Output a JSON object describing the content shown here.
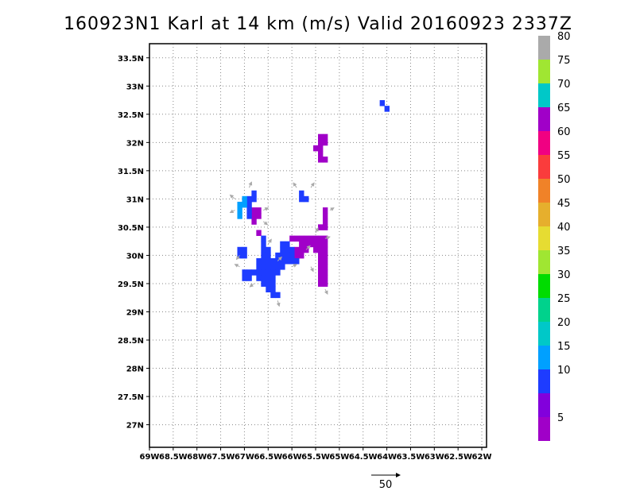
{
  "chart_data": {
    "type": "heatmap",
    "title": "160923N1 Karl at 14 km (m/s) Valid 20160923 2337Z",
    "xlim": [
      -69.0,
      -61.9
    ],
    "ylim": [
      26.6,
      33.75
    ],
    "x_ticks": [
      {
        "value": -69.0,
        "label": "69W"
      },
      {
        "value": -68.5,
        "label": "68.5W"
      },
      {
        "value": -68.0,
        "label": "68W"
      },
      {
        "value": -67.5,
        "label": "67.5W"
      },
      {
        "value": -67.0,
        "label": "67W"
      },
      {
        "value": -66.5,
        "label": "66.5W"
      },
      {
        "value": -66.0,
        "label": "66W"
      },
      {
        "value": -65.5,
        "label": "65.5W"
      },
      {
        "value": -65.0,
        "label": "65W"
      },
      {
        "value": -64.5,
        "label": "64.5W"
      },
      {
        "value": -64.0,
        "label": "64W"
      },
      {
        "value": -63.5,
        "label": "63.5W"
      },
      {
        "value": -63.0,
        "label": "63W"
      },
      {
        "value": -62.5,
        "label": "62.5W"
      },
      {
        "value": -62.0,
        "label": "62W"
      }
    ],
    "y_ticks": [
      {
        "value": 27.0,
        "label": "27N"
      },
      {
        "value": 27.5,
        "label": "27.5N"
      },
      {
        "value": 28.0,
        "label": "28N"
      },
      {
        "value": 28.5,
        "label": "28.5N"
      },
      {
        "value": 29.0,
        "label": "29N"
      },
      {
        "value": 29.5,
        "label": "29.5N"
      },
      {
        "value": 30.0,
        "label": "30N"
      },
      {
        "value": 30.5,
        "label": "30.5N"
      },
      {
        "value": 31.0,
        "label": "31N"
      },
      {
        "value": 31.5,
        "label": "31.5N"
      },
      {
        "value": 32.0,
        "label": "32N"
      },
      {
        "value": 32.5,
        "label": "32.5N"
      },
      {
        "value": 33.0,
        "label": "33N"
      },
      {
        "value": 33.5,
        "label": "33.5N"
      }
    ],
    "grid": true,
    "cell_size_deg": 0.1,
    "colorbar": {
      "placement": "right",
      "bins": [
        {
          "color": "#a000c8",
          "label": "5"
        },
        {
          "color": "#8200dc",
          "label": ""
        },
        {
          "color": "#1e3cff",
          "label": "10"
        },
        {
          "color": "#00a0ff",
          "label": "15"
        },
        {
          "color": "#00c8c8",
          "label": "20"
        },
        {
          "color": "#00d28c",
          "label": "25"
        },
        {
          "color": "#00dc00",
          "label": "30"
        },
        {
          "color": "#a0e632",
          "label": "35"
        },
        {
          "color": "#e6dc32",
          "label": "40"
        },
        {
          "color": "#e6af2d",
          "label": "45"
        },
        {
          "color": "#f08228",
          "label": "50"
        },
        {
          "color": "#fa3c3c",
          "label": "55"
        },
        {
          "color": "#f00082",
          "label": "60"
        },
        {
          "color": "#a000c8",
          "label": "65"
        },
        {
          "color": "#00c8c8",
          "label": "70"
        },
        {
          "color": "#a0e632",
          "label": "75"
        },
        {
          "color": "#aaaaaa",
          "label": "80"
        }
      ]
    },
    "regions": [
      {
        "name": "purple",
        "value": 5,
        "color": "#a000c8",
        "cells": [
          [
            -65.4,
            32.1
          ],
          [
            -65.3,
            32.1
          ],
          [
            -65.4,
            32.0
          ],
          [
            -65.3,
            32.0
          ],
          [
            -65.5,
            31.9
          ],
          [
            -65.4,
            31.9
          ],
          [
            -65.4,
            31.8
          ],
          [
            -65.4,
            31.7
          ],
          [
            -65.3,
            31.7
          ],
          [
            -65.3,
            30.8
          ],
          [
            -65.3,
            30.7
          ],
          [
            -65.3,
            30.6
          ],
          [
            -65.4,
            30.5
          ],
          [
            -65.3,
            30.5
          ],
          [
            -66.0,
            30.3
          ],
          [
            -65.9,
            30.3
          ],
          [
            -65.8,
            30.3
          ],
          [
            -65.7,
            30.3
          ],
          [
            -65.6,
            30.3
          ],
          [
            -65.5,
            30.3
          ],
          [
            -65.4,
            30.3
          ],
          [
            -65.3,
            30.3
          ],
          [
            -65.8,
            30.2
          ],
          [
            -65.7,
            30.2
          ],
          [
            -65.6,
            30.2
          ],
          [
            -65.5,
            30.2
          ],
          [
            -65.4,
            30.2
          ],
          [
            -65.3,
            30.2
          ],
          [
            -65.9,
            30.1
          ],
          [
            -65.8,
            30.1
          ],
          [
            -65.7,
            30.1
          ],
          [
            -65.5,
            30.1
          ],
          [
            -65.4,
            30.1
          ],
          [
            -65.3,
            30.1
          ],
          [
            -65.9,
            30.0
          ],
          [
            -65.8,
            30.0
          ],
          [
            -65.4,
            30.0
          ],
          [
            -65.3,
            30.0
          ],
          [
            -65.4,
            29.9
          ],
          [
            -65.3,
            29.9
          ],
          [
            -65.4,
            29.8
          ],
          [
            -65.3,
            29.8
          ],
          [
            -65.4,
            29.7
          ],
          [
            -65.3,
            29.7
          ],
          [
            -65.4,
            29.6
          ],
          [
            -65.3,
            29.6
          ],
          [
            -65.4,
            29.5
          ],
          [
            -65.3,
            29.5
          ],
          [
            -66.8,
            30.8
          ],
          [
            -66.7,
            30.8
          ],
          [
            -66.8,
            30.7
          ],
          [
            -66.7,
            30.7
          ],
          [
            -66.8,
            30.6
          ],
          [
            -66.7,
            30.4
          ]
        ]
      },
      {
        "name": "blue",
        "value": 10,
        "color": "#1e3cff",
        "cells": [
          [
            -64.1,
            32.7
          ],
          [
            -64.0,
            32.6
          ],
          [
            -65.8,
            31.1
          ],
          [
            -65.8,
            31.0
          ],
          [
            -65.7,
            31.0
          ],
          [
            -66.8,
            31.1
          ],
          [
            -66.8,
            31.0
          ],
          [
            -66.9,
            31.0
          ],
          [
            -66.9,
            30.9
          ],
          [
            -66.9,
            30.8
          ],
          [
            -66.9,
            30.7
          ],
          [
            -66.6,
            30.3
          ],
          [
            -66.6,
            30.2
          ],
          [
            -66.6,
            30.1
          ],
          [
            -66.5,
            30.1
          ],
          [
            -66.6,
            30.0
          ],
          [
            -66.5,
            30.0
          ],
          [
            -66.3,
            30.0
          ],
          [
            -66.2,
            30.0
          ],
          [
            -66.1,
            30.0
          ],
          [
            -66.2,
            30.1
          ],
          [
            -66.1,
            30.1
          ],
          [
            -66.2,
            30.2
          ],
          [
            -66.1,
            30.2
          ],
          [
            -66.0,
            30.1
          ],
          [
            -66.0,
            30.0
          ],
          [
            -66.0,
            29.9
          ],
          [
            -65.9,
            29.9
          ],
          [
            -66.7,
            29.9
          ],
          [
            -66.6,
            29.9
          ],
          [
            -66.5,
            29.9
          ],
          [
            -66.4,
            29.9
          ],
          [
            -66.3,
            29.9
          ],
          [
            -66.2,
            29.9
          ],
          [
            -66.1,
            29.9
          ],
          [
            -66.7,
            29.8
          ],
          [
            -66.6,
            29.8
          ],
          [
            -66.5,
            29.8
          ],
          [
            -66.4,
            29.8
          ],
          [
            -66.3,
            29.8
          ],
          [
            -66.2,
            29.8
          ],
          [
            -67.0,
            29.7
          ],
          [
            -66.9,
            29.7
          ],
          [
            -66.8,
            29.7
          ],
          [
            -66.7,
            29.7
          ],
          [
            -66.6,
            29.7
          ],
          [
            -66.5,
            29.7
          ],
          [
            -66.4,
            29.7
          ],
          [
            -66.3,
            29.7
          ],
          [
            -67.0,
            29.6
          ],
          [
            -66.9,
            29.6
          ],
          [
            -66.7,
            29.6
          ],
          [
            -66.6,
            29.6
          ],
          [
            -66.5,
            29.6
          ],
          [
            -66.4,
            29.6
          ],
          [
            -66.6,
            29.5
          ],
          [
            -66.5,
            29.5
          ],
          [
            -66.4,
            29.5
          ],
          [
            -66.5,
            29.4
          ],
          [
            -66.4,
            29.4
          ],
          [
            -66.4,
            29.3
          ],
          [
            -66.3,
            29.3
          ],
          [
            -67.1,
            30.1
          ],
          [
            -67.0,
            30.1
          ],
          [
            -67.1,
            30.0
          ],
          [
            -67.0,
            30.0
          ]
        ]
      },
      {
        "name": "light-blue",
        "value": 15,
        "color": "#00a0ff",
        "cells": [
          [
            -67.0,
            31.0
          ],
          [
            -67.0,
            30.9
          ],
          [
            -67.1,
            30.9
          ],
          [
            -67.1,
            30.8
          ],
          [
            -67.1,
            30.7
          ]
        ]
      }
    ],
    "vectors": [
      [
        -67.2,
        31.0,
        -0.6,
        0.5
      ],
      [
        -67.2,
        30.8,
        -0.6,
        -0.3
      ],
      [
        -66.9,
        31.2,
        0.3,
        0.7
      ],
      [
        -66.6,
        30.8,
        0.6,
        0.3
      ],
      [
        -66.6,
        30.6,
        0.5,
        -0.4
      ],
      [
        -65.9,
        31.2,
        -0.4,
        0.6
      ],
      [
        -65.6,
        31.2,
        0.4,
        0.6
      ],
      [
        -65.2,
        30.8,
        0.5,
        0.3
      ],
      [
        -66.5,
        30.2,
        0.4,
        0.6
      ],
      [
        -66.3,
        29.9,
        0.5,
        0.5
      ],
      [
        -66.0,
        29.8,
        0.6,
        0.3
      ],
      [
        -65.7,
        30.1,
        0.5,
        0.5
      ],
      [
        -65.6,
        29.8,
        0.3,
        -0.6
      ],
      [
        -65.5,
        30.4,
        0.3,
        0.6
      ],
      [
        -65.3,
        30.3,
        0.6,
        0.2
      ],
      [
        -67.1,
        29.8,
        -0.6,
        0.3
      ],
      [
        -67.1,
        30.0,
        -0.4,
        -0.5
      ],
      [
        -66.3,
        29.2,
        0.2,
        -0.7
      ],
      [
        -66.8,
        29.5,
        -0.5,
        -0.4
      ],
      [
        -65.3,
        29.4,
        0.3,
        -0.6
      ]
    ],
    "reference_vector": {
      "label": "50"
    }
  }
}
